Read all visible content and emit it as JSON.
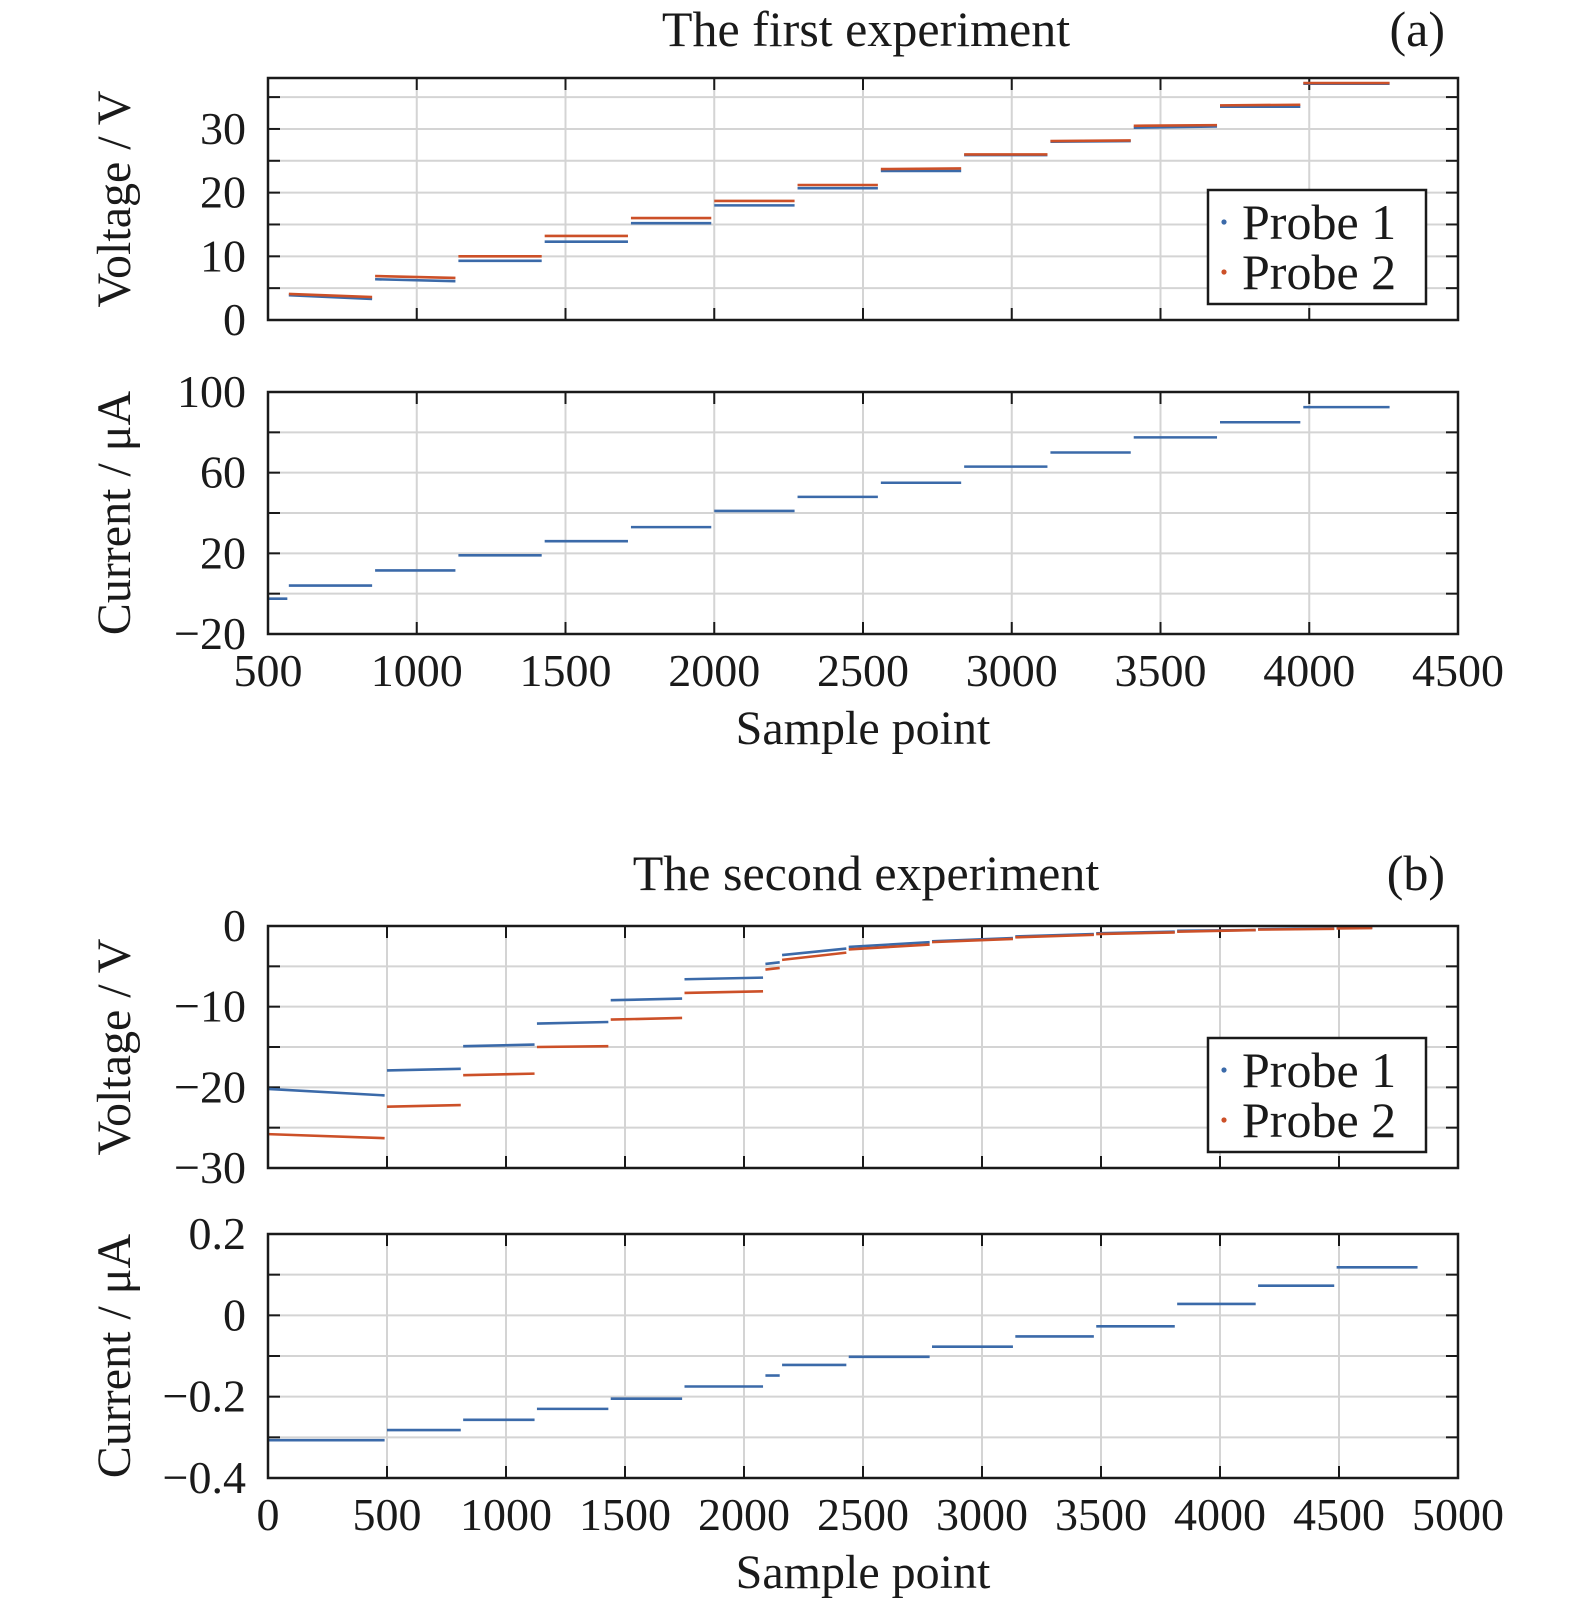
{
  "figure": {
    "colors": {
      "probe1": "#3b6aa9",
      "probe2": "#cc5028",
      "grid": "#d4d4d4",
      "axis": "#1a1a1a"
    }
  },
  "chart_data": [
    {
      "panel": "(a)",
      "title": "The first experiment",
      "subplots": [
        {
          "type": "line",
          "ylabel": "Voltage / V",
          "xlim": [
            500,
            4500
          ],
          "ylim": [
            0,
            38
          ],
          "yticks": [
            0,
            10,
            20,
            30
          ],
          "xtick_labels_shown": false,
          "legend": {
            "entries": [
              "Probe 1",
              "Probe 2"
            ],
            "position": "right-middle"
          },
          "series": [
            {
              "name": "Probe 1",
              "color_key": "probe1",
              "segments": [
                [
                  570,
                  850,
                  3.9,
                  3.3
                ],
                [
                  860,
                  1130,
                  6.4,
                  6.1
                ],
                [
                  1140,
                  1420,
                  9.3,
                  9.3
                ],
                [
                  1430,
                  1710,
                  12.3,
                  12.3
                ],
                [
                  1720,
                  1990,
                  15.2,
                  15.2
                ],
                [
                  2000,
                  2270,
                  18.0,
                  18.0
                ],
                [
                  2280,
                  2550,
                  20.7,
                  20.7
                ],
                [
                  2560,
                  2830,
                  23.4,
                  23.4
                ],
                [
                  2840,
                  3120,
                  25.9,
                  25.9
                ],
                [
                  3130,
                  3400,
                  28.0,
                  28.1
                ],
                [
                  3410,
                  3690,
                  30.2,
                  30.4
                ],
                [
                  3700,
                  3970,
                  33.5,
                  33.5
                ],
                [
                  3980,
                  4270,
                  37.1,
                  37.1
                ]
              ]
            },
            {
              "name": "Probe 2",
              "color_key": "probe2",
              "segments": [
                [
                  570,
                  850,
                  4.1,
                  3.6
                ],
                [
                  860,
                  1130,
                  6.9,
                  6.6
                ],
                [
                  1140,
                  1420,
                  10.0,
                  10.0
                ],
                [
                  1430,
                  1710,
                  13.2,
                  13.2
                ],
                [
                  1720,
                  1990,
                  16.0,
                  16.0
                ],
                [
                  2000,
                  2270,
                  18.7,
                  18.7
                ],
                [
                  2280,
                  2550,
                  21.2,
                  21.2
                ],
                [
                  2560,
                  2830,
                  23.7,
                  23.8
                ],
                [
                  2840,
                  3120,
                  26.0,
                  26.0
                ],
                [
                  3130,
                  3400,
                  28.1,
                  28.2
                ],
                [
                  3410,
                  3690,
                  30.5,
                  30.6
                ],
                [
                  3700,
                  3970,
                  33.7,
                  33.8
                ],
                [
                  3980,
                  4270,
                  37.2,
                  37.2
                ]
              ]
            }
          ]
        },
        {
          "type": "line",
          "ylabel": "Current / μA",
          "xlabel": "Sample point",
          "xlim": [
            500,
            4500
          ],
          "ylim": [
            -20,
            100
          ],
          "yticks": [
            -20,
            20,
            60,
            100
          ],
          "ytick_labels": [
            "−20",
            "20",
            "60",
            "100"
          ],
          "xticks": [
            500,
            1000,
            1500,
            2000,
            2500,
            3000,
            3500,
            4000,
            4500
          ],
          "xtick_labels": [
            "500",
            "1000",
            "1500",
            "2000",
            "2500",
            "3000",
            "3500",
            "4000",
            "4500"
          ],
          "series": [
            {
              "name": "Current",
              "color_key": "probe1",
              "segments": [
                [
                  500,
                  565,
                  -2.5,
                  -2.5
                ],
                [
                  570,
                  850,
                  4.0,
                  4.0
                ],
                [
                  860,
                  1130,
                  11.5,
                  11.5
                ],
                [
                  1140,
                  1420,
                  19.0,
                  19.0
                ],
                [
                  1430,
                  1710,
                  26.0,
                  26.0
                ],
                [
                  1720,
                  1990,
                  33.0,
                  33.0
                ],
                [
                  2000,
                  2270,
                  41.0,
                  41.0
                ],
                [
                  2280,
                  2550,
                  48.0,
                  48.0
                ],
                [
                  2560,
                  2830,
                  55.0,
                  55.0
                ],
                [
                  2840,
                  3120,
                  63.0,
                  63.0
                ],
                [
                  3130,
                  3400,
                  70.0,
                  70.0
                ],
                [
                  3410,
                  3690,
                  77.5,
                  77.5
                ],
                [
                  3700,
                  3970,
                  85.0,
                  85.0
                ],
                [
                  3980,
                  4270,
                  92.5,
                  92.5
                ]
              ]
            }
          ]
        }
      ]
    },
    {
      "panel": "(b)",
      "title": "The second experiment",
      "subplots": [
        {
          "type": "line",
          "ylabel": "Voltage / V",
          "xlim": [
            0,
            5000
          ],
          "ylim": [
            -30,
            0
          ],
          "yticks": [
            -30,
            -20,
            -10,
            0
          ],
          "ytick_labels": [
            "−30",
            "−20",
            "−10",
            "0"
          ],
          "xtick_labels_shown": false,
          "legend": {
            "entries": [
              "Probe 1",
              "Probe 2"
            ],
            "position": "right-middle"
          },
          "series": [
            {
              "name": "Probe 1",
              "color_key": "probe1",
              "segments": [
                [
                  0,
                  490,
                  -20.2,
                  -21.0
                ],
                [
                  500,
                  810,
                  -17.9,
                  -17.7
                ],
                [
                  820,
                  1120,
                  -14.9,
                  -14.7
                ],
                [
                  1130,
                  1430,
                  -12.1,
                  -11.9
                ],
                [
                  1440,
                  1740,
                  -9.2,
                  -9.0
                ],
                [
                  1750,
                  2080,
                  -6.6,
                  -6.4
                ],
                [
                  2090,
                  2150,
                  -4.7,
                  -4.5
                ],
                [
                  2160,
                  2430,
                  -3.6,
                  -2.8
                ],
                [
                  2440,
                  2780,
                  -2.6,
                  -2.0
                ],
                [
                  2790,
                  3130,
                  -1.9,
                  -1.5
                ],
                [
                  3140,
                  3470,
                  -1.3,
                  -1.0
                ],
                [
                  3480,
                  3810,
                  -0.9,
                  -0.7
                ],
                [
                  3820,
                  4150,
                  -0.6,
                  -0.5
                ],
                [
                  4160,
                  4480,
                  -0.4,
                  -0.3
                ],
                [
                  4490,
                  4640,
                  -0.25,
                  -0.2
                ]
              ]
            },
            {
              "name": "Probe 2",
              "color_key": "probe2",
              "segments": [
                [
                  0,
                  490,
                  -25.8,
                  -26.3
                ],
                [
                  500,
                  810,
                  -22.4,
                  -22.2
                ],
                [
                  820,
                  1120,
                  -18.5,
                  -18.3
                ],
                [
                  1130,
                  1430,
                  -15.0,
                  -14.9
                ],
                [
                  1440,
                  1740,
                  -11.6,
                  -11.4
                ],
                [
                  1750,
                  2080,
                  -8.3,
                  -8.1
                ],
                [
                  2090,
                  2150,
                  -5.4,
                  -5.2
                ],
                [
                  2160,
                  2430,
                  -4.2,
                  -3.3
                ],
                [
                  2440,
                  2780,
                  -2.9,
                  -2.3
                ],
                [
                  2790,
                  3130,
                  -2.0,
                  -1.6
                ],
                [
                  3140,
                  3470,
                  -1.4,
                  -1.1
                ],
                [
                  3480,
                  3810,
                  -1.0,
                  -0.8
                ],
                [
                  3820,
                  4150,
                  -0.7,
                  -0.5
                ],
                [
                  4160,
                  4480,
                  -0.45,
                  -0.35
                ],
                [
                  4490,
                  4640,
                  -0.3,
                  -0.25
                ]
              ]
            }
          ]
        },
        {
          "type": "line",
          "ylabel": "Current / μA",
          "xlabel": "Sample point",
          "xlim": [
            0,
            5000
          ],
          "ylim": [
            -0.4,
            0.2
          ],
          "yticks": [
            -0.4,
            -0.2,
            0,
            0.2
          ],
          "ytick_labels": [
            "−0.4",
            "−0.2",
            "0",
            "0.2"
          ],
          "xticks": [
            0,
            500,
            1000,
            1500,
            2000,
            2500,
            3000,
            3500,
            4000,
            4500,
            5000
          ],
          "xtick_labels": [
            "0",
            "500",
            "1000",
            "1500",
            "2000",
            "2500",
            "3000",
            "3500",
            "4000",
            "4500",
            "5000"
          ],
          "series": [
            {
              "name": "Current",
              "color_key": "probe1",
              "segments": [
                [
                  0,
                  490,
                  -0.307,
                  -0.307
                ],
                [
                  500,
                  810,
                  -0.282,
                  -0.282
                ],
                [
                  820,
                  1120,
                  -0.257,
                  -0.257
                ],
                [
                  1130,
                  1430,
                  -0.23,
                  -0.23
                ],
                [
                  1440,
                  1740,
                  -0.205,
                  -0.205
                ],
                [
                  1750,
                  2080,
                  -0.175,
                  -0.175
                ],
                [
                  2090,
                  2150,
                  -0.148,
                  -0.148
                ],
                [
                  2160,
                  2430,
                  -0.122,
                  -0.122
                ],
                [
                  2440,
                  2780,
                  -0.102,
                  -0.102
                ],
                [
                  2790,
                  3130,
                  -0.077,
                  -0.077
                ],
                [
                  3140,
                  3470,
                  -0.052,
                  -0.052
                ],
                [
                  3480,
                  3810,
                  -0.027,
                  -0.027
                ],
                [
                  3820,
                  4150,
                  0.028,
                  0.028
                ],
                [
                  4160,
                  4480,
                  0.073,
                  0.073
                ],
                [
                  4490,
                  4830,
                  0.118,
                  0.118
                ]
              ]
            }
          ]
        }
      ]
    }
  ]
}
